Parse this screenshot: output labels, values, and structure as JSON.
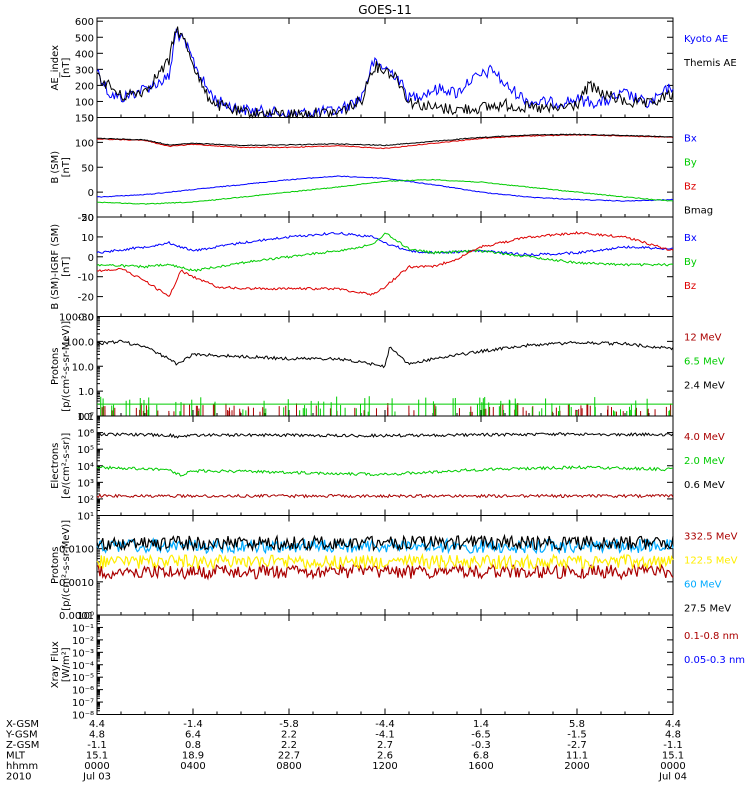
{
  "figure": {
    "title": "GOES-11",
    "x_axis": {
      "start_label": "Jul 03",
      "end_label": "Jul 04",
      "tick_hours": [
        0,
        4,
        8,
        12,
        16,
        20,
        24
      ],
      "rows": [
        {
          "label": "X-GSM",
          "values": [
            "4.4",
            "-1.4",
            "-5.8",
            "-4.4",
            "1.4",
            "5.8",
            "4.4"
          ]
        },
        {
          "label": "Y-GSM",
          "values": [
            "4.8",
            "6.4",
            "2.2",
            "-4.1",
            "-6.5",
            "-1.5",
            "4.8"
          ]
        },
        {
          "label": "Z-GSM",
          "values": [
            "-1.1",
            "0.8",
            "2.2",
            "2.7",
            "-0.3",
            "-2.7",
            "-1.1"
          ]
        },
        {
          "label": "MLT",
          "values": [
            "15.1",
            "18.9",
            "22.7",
            "2.6",
            "6.8",
            "11.1",
            "15.1"
          ]
        },
        {
          "label": "hhmm",
          "values": [
            "0000",
            "0400",
            "0800",
            "1200",
            "1600",
            "2000",
            "0000"
          ]
        },
        {
          "label": "2010",
          "values": [
            "Jul 03",
            "",
            "",
            "",
            "",
            "",
            "Jul 04"
          ]
        }
      ]
    }
  },
  "colors": {
    "blue": "#0000ff",
    "green": "#00cc00",
    "red": "#dd0000",
    "darkred": "#aa0000",
    "black": "#000000",
    "yellow": "#ffee00",
    "cyan": "#00aaff"
  },
  "chart_data": [
    {
      "type": "line",
      "ylabel": [
        "AE_index",
        "[nT]"
      ],
      "scale": "linear",
      "ylim": [
        0,
        620
      ],
      "yticks": [
        0,
        100,
        200,
        300,
        400,
        500,
        600
      ],
      "legend_placement": "right",
      "series": [
        {
          "name": "Kyoto AE",
          "color": "blue",
          "x": [
            0,
            0.5,
            1,
            2,
            3,
            3.3,
            3.7,
            4.5,
            5,
            6,
            8,
            10,
            11,
            11.5,
            12,
            12.5,
            13,
            14,
            14.5,
            15,
            15.5,
            16,
            16.5,
            17,
            18,
            19,
            20,
            21,
            22,
            23,
            24
          ],
          "y": [
            300,
            150,
            120,
            180,
            250,
            540,
            450,
            200,
            100,
            50,
            20,
            40,
            120,
            340,
            310,
            260,
            120,
            170,
            180,
            150,
            230,
            260,
            300,
            200,
            100,
            90,
            110,
            90,
            150,
            80,
            200
          ]
        },
        {
          "name": "Themis AE",
          "color": "black",
          "x": [
            0,
            0.5,
            1,
            2,
            3,
            3.3,
            3.7,
            4.5,
            5,
            6,
            8,
            10,
            11,
            11.5,
            12,
            12.5,
            13,
            14,
            15,
            16,
            17,
            18,
            19,
            20,
            20.5,
            21,
            22,
            23,
            24
          ],
          "y": [
            250,
            200,
            130,
            170,
            350,
            560,
            460,
            150,
            80,
            30,
            20,
            30,
            100,
            320,
            300,
            250,
            100,
            60,
            50,
            60,
            80,
            60,
            50,
            80,
            200,
            150,
            100,
            80,
            150
          ]
        }
      ]
    },
    {
      "type": "line",
      "ylabel": [
        "B (SM)",
        "[nT]"
      ],
      "scale": "linear",
      "ylim": [
        -50,
        150
      ],
      "yticks": [
        -50,
        0,
        50,
        100,
        150
      ],
      "legend_placement": "right",
      "series": [
        {
          "name": "Bx",
          "color": "blue",
          "x": [
            0,
            2,
            4,
            6,
            8,
            10,
            12,
            14,
            16,
            18,
            20,
            22,
            24
          ],
          "y": [
            -10,
            -5,
            5,
            15,
            25,
            32,
            28,
            15,
            0,
            -10,
            -15,
            -18,
            -15
          ]
        },
        {
          "name": "By",
          "color": "green",
          "x": [
            0,
            2,
            4,
            6,
            8,
            10,
            12,
            14,
            16,
            18,
            20,
            22,
            24
          ],
          "y": [
            -20,
            -24,
            -20,
            -10,
            0,
            10,
            22,
            25,
            20,
            10,
            0,
            -10,
            -18
          ]
        },
        {
          "name": "Bz",
          "color": "red",
          "x": [
            0,
            2,
            3,
            4,
            6,
            8,
            10,
            12,
            14,
            16,
            18,
            20,
            22,
            24
          ],
          "y": [
            107,
            104,
            92,
            96,
            90,
            90,
            93,
            88,
            98,
            108,
            113,
            115,
            113,
            110
          ]
        },
        {
          "name": "Bmag",
          "color": "black",
          "x": [
            0,
            2,
            3,
            4,
            6,
            8,
            10,
            12,
            14,
            16,
            18,
            20,
            22,
            24
          ],
          "y": [
            108,
            105,
            95,
            98,
            94,
            95,
            97,
            94,
            102,
            110,
            115,
            116,
            114,
            111
          ]
        }
      ]
    },
    {
      "type": "line",
      "ylabel": [
        "B (SM)-IGRF (SM)",
        "[nT]"
      ],
      "scale": "linear",
      "ylim": [
        -30,
        20
      ],
      "yticks": [
        -30,
        -20,
        -10,
        0,
        10,
        20
      ],
      "legend_placement": "right",
      "series": [
        {
          "name": "Bx",
          "color": "blue",
          "x": [
            0,
            2,
            3,
            4,
            6,
            8,
            10,
            11.5,
            12,
            13,
            14,
            16,
            18,
            20,
            22,
            24
          ],
          "y": [
            2,
            5,
            7,
            3,
            7,
            10,
            12,
            10,
            7,
            3,
            2,
            3,
            1,
            2,
            5,
            4
          ]
        },
        {
          "name": "By",
          "color": "green",
          "x": [
            0,
            2,
            3,
            4,
            6,
            8,
            10,
            11.5,
            12,
            13,
            14,
            16,
            18,
            20,
            22,
            24
          ],
          "y": [
            -4,
            -5,
            -4,
            -7,
            -3,
            0,
            3,
            6,
            12,
            4,
            2,
            3,
            0,
            -3,
            -4,
            -4
          ]
        },
        {
          "name": "Bz",
          "color": "red",
          "x": [
            0,
            1,
            2,
            3,
            3.5,
            4,
            5,
            6,
            8,
            10,
            11.5,
            12,
            13,
            14,
            15,
            16,
            18,
            20,
            22,
            24
          ],
          "y": [
            -7,
            -6,
            -12,
            -20,
            -7,
            -10,
            -15,
            -16,
            -16,
            -16,
            -19,
            -15,
            -5,
            -5,
            -1,
            5,
            10,
            12,
            10,
            3
          ]
        }
      ]
    },
    {
      "type": "line",
      "ylabel": [
        "Protons",
        "[p/(cm²-s-sr-MeV)]"
      ],
      "scale": "log",
      "ylim": [
        0.1,
        1000
      ],
      "ytick_labels": [
        "0.1",
        "1.0",
        "10.0",
        "100.0",
        "1000.0"
      ],
      "legend_placement": "right",
      "series": [
        {
          "name": "12 MeV",
          "color": "darkred",
          "x": [
            0,
            24
          ],
          "y": [
            0.1,
            0.1
          ]
        },
        {
          "name": "6.5 MeV",
          "color": "green",
          "x": [
            0,
            24
          ],
          "y": [
            0.3,
            0.3
          ]
        },
        {
          "name": "2.4 MeV",
          "color": "black",
          "x": [
            0,
            1,
            2,
            3,
            3.3,
            4,
            6,
            8,
            10,
            11.5,
            12,
            12.2,
            13,
            14,
            16,
            18,
            20,
            22,
            24
          ],
          "y": [
            80,
            100,
            60,
            20,
            12,
            30,
            25,
            20,
            20,
            12,
            10,
            60,
            12,
            20,
            40,
            70,
            90,
            80,
            50
          ]
        }
      ]
    },
    {
      "type": "line",
      "ylabel": [
        "Electrons",
        "[e/(cm²-s-sr)]"
      ],
      "scale": "log",
      "ylim": [
        10,
        10000000
      ],
      "ytick_labels": [
        "10¹",
        "10²",
        "10³",
        "10⁴",
        "10⁵",
        "10⁶",
        "10⁷"
      ],
      "legend_placement": "right",
      "series": [
        {
          "name": "4.0 MeV",
          "color": "darkred",
          "x": [
            0,
            24
          ],
          "y": [
            150,
            150
          ]
        },
        {
          "name": "2.0 MeV",
          "color": "green",
          "x": [
            0,
            3,
            3.5,
            4,
            8,
            12,
            16,
            20,
            24
          ],
          "y": [
            8000,
            6000,
            2500,
            5000,
            4000,
            3000,
            6000,
            8000,
            6000
          ]
        },
        {
          "name": "0.6 MeV",
          "color": "black",
          "x": [
            0,
            3,
            3.5,
            4,
            8,
            12,
            16,
            20,
            24
          ],
          "y": [
            800000,
            700000,
            550000,
            700000,
            700000,
            650000,
            750000,
            800000,
            750000
          ]
        }
      ]
    },
    {
      "type": "line",
      "ylabel": [
        "Protons",
        "[p/(cm²-s-sr-MeV)]"
      ],
      "scale": "log",
      "ylim": [
        0.0001,
        0.1
      ],
      "ytick_labels": [
        "0.0001",
        "0.0010",
        "0.0100"
      ],
      "legend_placement": "right",
      "series": [
        {
          "name": "332.5 MeV",
          "color": "darkred",
          "x": [
            0,
            24
          ],
          "y": [
            0.002,
            0.002
          ]
        },
        {
          "name": "122.5 MeV",
          "color": "yellow",
          "x": [
            0,
            24
          ],
          "y": [
            0.004,
            0.004
          ]
        },
        {
          "name": "60 MeV",
          "color": "cyan",
          "x": [
            0,
            24
          ],
          "y": [
            0.012,
            0.012
          ]
        },
        {
          "name": "27.5 MeV",
          "color": "black",
          "x": [
            0,
            24
          ],
          "y": [
            0.015,
            0.015
          ]
        }
      ]
    },
    {
      "type": "line",
      "ylabel": [
        "Xray Flux",
        "[W/m²]"
      ],
      "scale": "log",
      "ylim": [
        1e-08,
        1
      ],
      "ytick_labels": [
        "10⁻⁸",
        "10⁻⁷",
        "10⁻⁶",
        "10⁻⁵",
        "10⁻⁴",
        "10⁻³",
        "10⁻²",
        "10⁻¹",
        "10⁰"
      ],
      "legend_placement": "right",
      "series": [
        {
          "name": "0.1-0.8 nm",
          "color": "darkred",
          "x": [],
          "y": []
        },
        {
          "name": "0.05-0.3 nm",
          "color": "blue",
          "x": [],
          "y": []
        }
      ]
    }
  ]
}
